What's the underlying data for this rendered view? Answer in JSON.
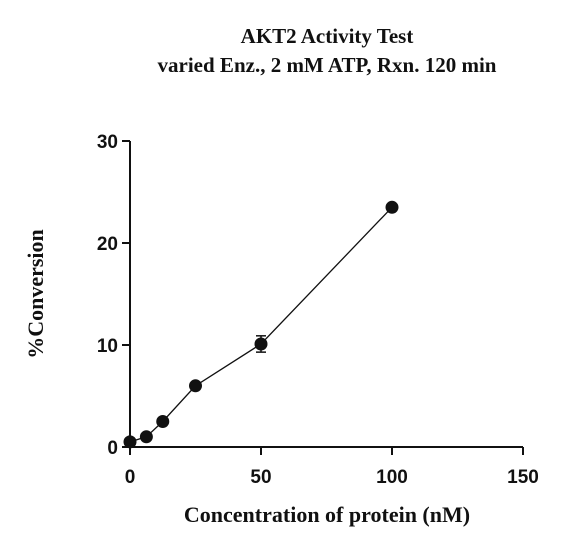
{
  "chart_data": {
    "type": "line",
    "title": "AKT2 Activity Test",
    "subtitle": "varied Enz., 2 mM ATP, Rxn. 120 min",
    "xlabel": "Concentration of protein (nM)",
    "ylabel": "%Conversion",
    "xlim": [
      0,
      150
    ],
    "ylim": [
      0,
      30
    ],
    "xticks": [
      0,
      50,
      100,
      150
    ],
    "yticks": [
      0,
      10,
      20,
      30
    ],
    "grid": false,
    "legend": "none",
    "series": [
      {
        "x": [
          0,
          6.25,
          12.5,
          25,
          50,
          100
        ],
        "y": [
          0.5,
          1.0,
          2.5,
          6.0,
          10.1,
          23.5
        ],
        "error": [
          0,
          0,
          0,
          0,
          0.8,
          0
        ],
        "color": "#111111"
      }
    ]
  }
}
